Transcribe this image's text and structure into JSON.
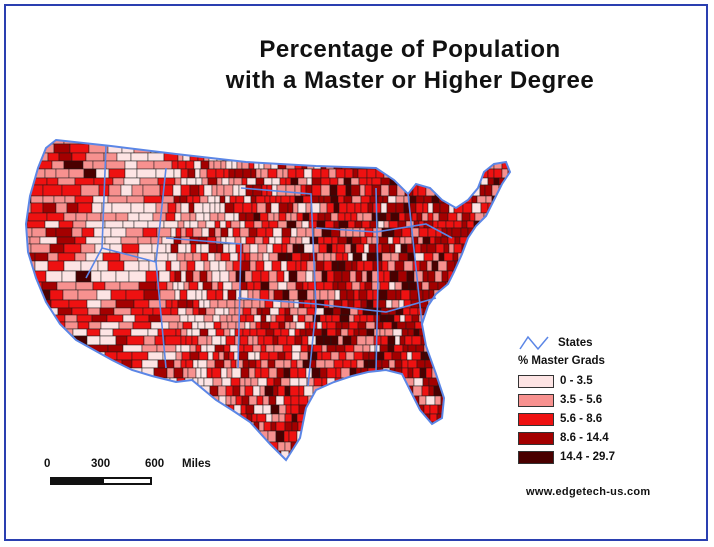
{
  "title": {
    "line1": "Percentage of Population",
    "line2": "with a Master or Higher Degree"
  },
  "legend": {
    "states_label": "States",
    "heading": "% Master Grads",
    "classes": [
      {
        "label": "0 - 3.5",
        "color": "#fde4e4"
      },
      {
        "label": "3.5 - 5.6",
        "color": "#f7918f"
      },
      {
        "label": "5.6 - 8.6",
        "color": "#ee1111"
      },
      {
        "label": "8.6 - 14.4",
        "color": "#a40000"
      },
      {
        "label": "14.4 - 29.7",
        "color": "#4a0000"
      }
    ],
    "boundary_color": "#5b86e6"
  },
  "scale_bar": {
    "ticks": [
      "0",
      "300",
      "600"
    ],
    "unit": "Miles"
  },
  "footer": {
    "url": "www.edgetech-us.com"
  },
  "colors": {
    "frame": "#2a3fb0",
    "state_lines": "#5b86e6",
    "county_lines": "#1a1a1a"
  }
}
